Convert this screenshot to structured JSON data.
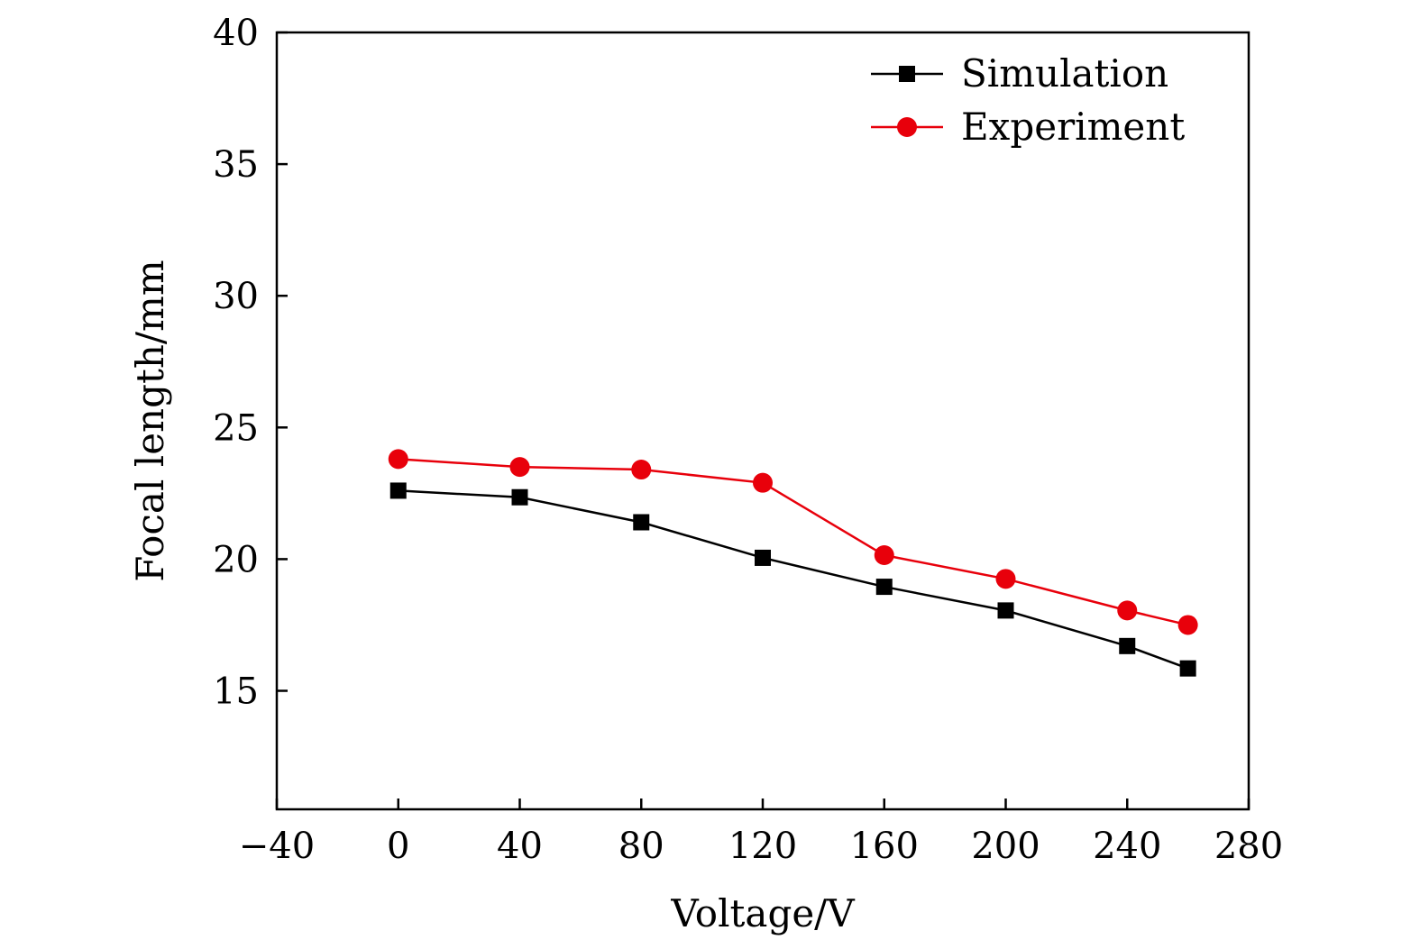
{
  "chart_data": {
    "type": "line",
    "title": "",
    "xlabel": "Voltage/V",
    "ylabel": "Focal length/mm",
    "xlim": [
      -40,
      280
    ],
    "ylim": [
      10.5,
      40
    ],
    "xticks": [
      -40,
      0,
      40,
      80,
      120,
      160,
      200,
      240,
      280
    ],
    "xtick_labels": [
      "−40",
      "0",
      "40",
      "80",
      "120",
      "160",
      "200",
      "240",
      "280"
    ],
    "yticks": [
      15,
      20,
      25,
      30,
      35,
      40
    ],
    "ytick_labels": [
      "15",
      "20",
      "25",
      "30",
      "35",
      "40"
    ],
    "grid": false,
    "legend_position": "top-right",
    "x": [
      0,
      40,
      80,
      120,
      160,
      200,
      240,
      260
    ],
    "series": [
      {
        "name": "Simulation",
        "color": "#000000",
        "marker": "square",
        "values": [
          22.6,
          22.35,
          21.4,
          20.05,
          18.95,
          18.05,
          16.7,
          15.85
        ]
      },
      {
        "name": "Experiment",
        "color": "#e8000b",
        "marker": "circle",
        "values": [
          23.8,
          23.5,
          23.4,
          22.9,
          20.15,
          19.25,
          18.05,
          17.5
        ]
      }
    ]
  }
}
